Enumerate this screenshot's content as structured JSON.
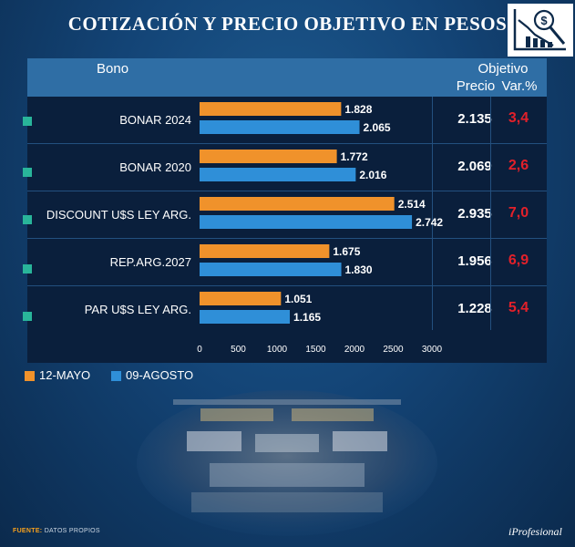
{
  "title": "COTIZACIÓN Y PRECIO OBJETIVO EN PESOS",
  "header": {
    "bono": "Bono",
    "objetivo": "Objetivo",
    "precio": "Precio",
    "var": "Var.%"
  },
  "rows": [
    {
      "name": "BONAR 2024",
      "precio": "2.135",
      "var": "3,4"
    },
    {
      "name": "BONAR 2020",
      "precio": "2.069",
      "var": "2,6"
    },
    {
      "name": "DISCOUNT U$S LEY ARG.",
      "precio": "2.935",
      "var": "7,0"
    },
    {
      "name": "REP.ARG.2027",
      "precio": "1.956",
      "var": "6,9"
    },
    {
      "name": "PAR U$S LEY ARG.",
      "precio": "1.228",
      "var": "5,4"
    }
  ],
  "legend": {
    "series1": "12-MAYO",
    "series2": "09-AGOSTO"
  },
  "footer": {
    "source_label": "FUENTE:",
    "source_text": "DATOS PROPIOS",
    "brand": "iProfesional"
  },
  "colors": {
    "series1": "#f0922b",
    "series2": "#2f8fd8",
    "accent_red": "#e3202a",
    "marker": "#29b59a"
  },
  "chart_data": {
    "type": "bar",
    "orientation": "horizontal",
    "title": "COTIZACIÓN Y PRECIO OBJETIVO EN PESOS",
    "categories": [
      "BONAR 2024",
      "BONAR 2020",
      "DISCOUNT U$S LEY ARG.",
      "REP.ARG.2027",
      "PAR U$S LEY ARG."
    ],
    "series": [
      {
        "name": "12-MAYO",
        "values": [
          1828,
          1772,
          2514,
          1675,
          1051
        ],
        "labels": [
          "1.828",
          "1.772",
          "2.514",
          "1.675",
          "1.051"
        ]
      },
      {
        "name": "09-AGOSTO",
        "values": [
          2065,
          2016,
          2742,
          1830,
          1165
        ],
        "labels": [
          "2.065",
          "2.016",
          "2.742",
          "1.830",
          "1.165"
        ]
      }
    ],
    "xlim": [
      0,
      3000
    ],
    "xticks": [
      0,
      500,
      1000,
      1500,
      2000,
      2500,
      3000
    ],
    "xlabel": "",
    "ylabel": "",
    "legend": "bottom-left"
  }
}
